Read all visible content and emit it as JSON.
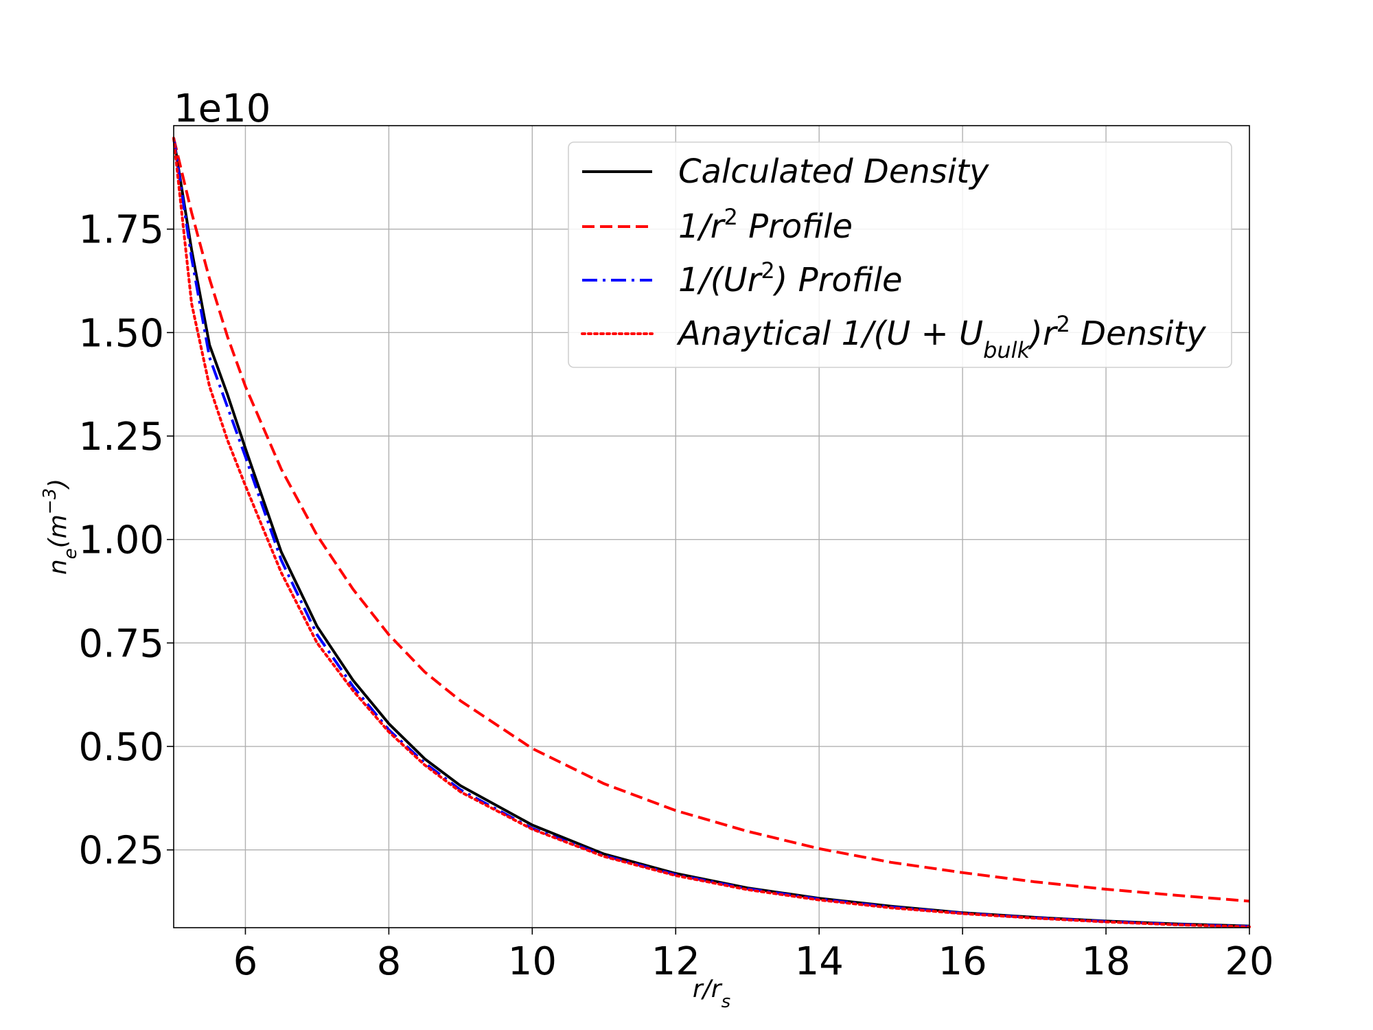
{
  "chart_data": {
    "type": "line",
    "x_range": [
      5,
      20
    ],
    "y_range": [
      0.062,
      2.0
    ],
    "y_scale_factor_label": "1e10",
    "xlabel": {
      "base": "r/r",
      "sub": "s"
    },
    "ylabel": {
      "base": "n",
      "sub": "e",
      "rest": "(m",
      "sup": "−3",
      "close": ")"
    },
    "xticks": [
      6,
      8,
      10,
      12,
      14,
      16,
      18,
      20
    ],
    "xtick_labels": [
      "6",
      "8",
      "10",
      "12",
      "14",
      "16",
      "18",
      "20"
    ],
    "yticks": [
      0.25,
      0.5,
      0.75,
      1.0,
      1.25,
      1.5,
      1.75
    ],
    "ytick_labels": [
      "0.25",
      "0.50",
      "0.75",
      "1.00",
      "1.25",
      "1.50",
      "1.75"
    ],
    "grid": true,
    "legend_position": "top-right",
    "x": [
      5,
      5.25,
      5.5,
      5.75,
      6,
      6.5,
      7,
      7.5,
      8,
      8.5,
      9,
      10,
      11,
      12,
      13,
      14,
      15,
      16,
      17,
      18,
      19,
      20
    ],
    "series": [
      {
        "name": "Calculated Density",
        "color": "#000000",
        "style": "solid",
        "values": [
          1.97,
          1.7,
          1.47,
          1.35,
          1.22,
          0.97,
          0.79,
          0.66,
          0.555,
          0.47,
          0.405,
          0.31,
          0.24,
          0.193,
          0.158,
          0.133,
          0.114,
          0.098,
          0.087,
          0.078,
          0.071,
          0.066
        ]
      },
      {
        "name": "1/r² Profile",
        "color": "#ff0000",
        "style": "dashed",
        "values": [
          1.97,
          1.79,
          1.63,
          1.49,
          1.37,
          1.17,
          1.01,
          0.88,
          0.77,
          0.68,
          0.61,
          0.495,
          0.41,
          0.345,
          0.295,
          0.253,
          0.22,
          0.195,
          0.173,
          0.155,
          0.14,
          0.126
        ]
      },
      {
        "name": "1/(Ur²) Profile",
        "color": "#0000ff",
        "style": "dashdot",
        "values": [
          1.97,
          1.68,
          1.44,
          1.32,
          1.2,
          0.95,
          0.77,
          0.645,
          0.54,
          0.46,
          0.395,
          0.302,
          0.236,
          0.19,
          0.156,
          0.131,
          0.112,
          0.097,
          0.086,
          0.077,
          0.07,
          0.065
        ]
      },
      {
        "name": "Anaytical 1/(U+U_bulk)r² Density",
        "color": "#ff0000",
        "style": "dotted",
        "values": [
          1.97,
          1.57,
          1.37,
          1.24,
          1.13,
          0.92,
          0.75,
          0.635,
          0.535,
          0.455,
          0.39,
          0.3,
          0.234,
          0.188,
          0.154,
          0.129,
          0.11,
          0.096,
          0.085,
          0.076,
          0.069,
          0.064
        ]
      }
    ],
    "legend": [
      {
        "parts": [
          {
            "t": "Calculated Density"
          }
        ]
      },
      {
        "parts": [
          {
            "t": "1/r"
          },
          {
            "t": "2",
            "sup": true
          },
          {
            "t": " Profile"
          }
        ]
      },
      {
        "parts": [
          {
            "t": "1/(Ur"
          },
          {
            "t": "2",
            "sup": true
          },
          {
            "t": ") Profile"
          }
        ]
      },
      {
        "parts": [
          {
            "t": "Anaytical 1/(U + U"
          },
          {
            "t": "bulk",
            "sub": true
          },
          {
            "t": ")r"
          },
          {
            "t": "2",
            "sup": true
          },
          {
            "t": " Density"
          }
        ]
      }
    ]
  }
}
